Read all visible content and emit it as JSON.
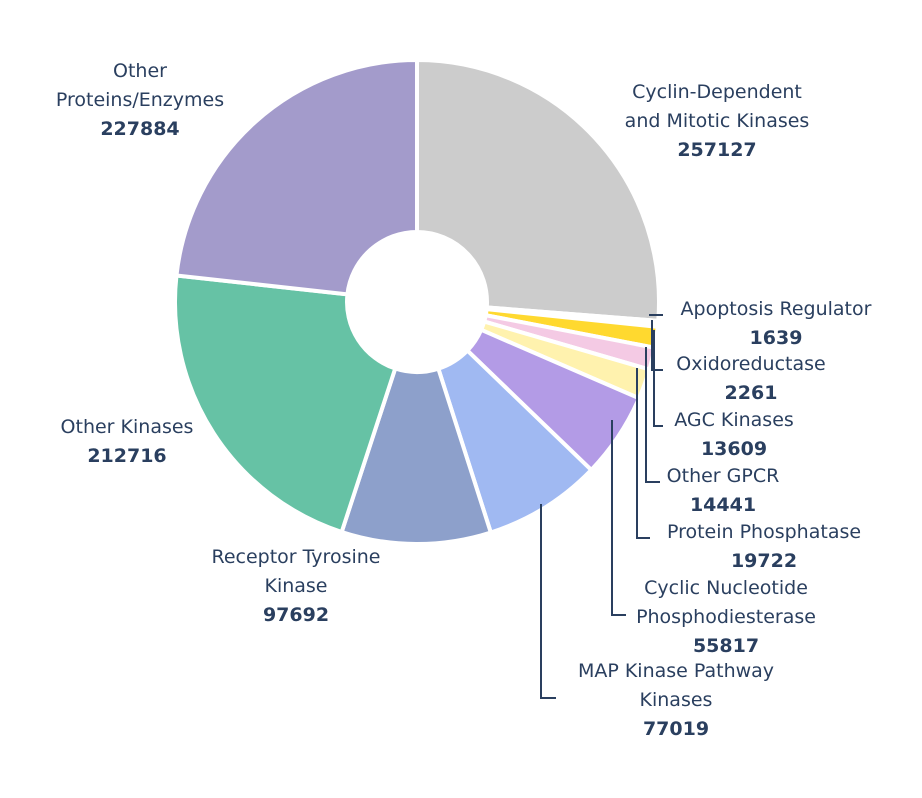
{
  "chart_data": {
    "type": "pie",
    "hole": true,
    "title": "",
    "legend": "none",
    "slices": [
      {
        "label": [
          "Cyclin-Dependent",
          "and Mitotic Kinases"
        ],
        "value": 257127,
        "color": "#cccccc"
      },
      {
        "label": [
          "Apoptosis Regulator"
        ],
        "value": 1639,
        "color": "#f28b82"
      },
      {
        "label": [
          "Oxidoreductase"
        ],
        "value": 2261,
        "color": "#f9a36f"
      },
      {
        "label": [
          "AGC Kinases"
        ],
        "value": 13609,
        "color": "#ffd92f"
      },
      {
        "label": [
          "Other GPCR"
        ],
        "value": 14441,
        "color": "#f4cae4"
      },
      {
        "label": [
          "Protein Phosphatase"
        ],
        "value": 19722,
        "color": "#fff2ae"
      },
      {
        "label": [
          "Cyclic Nucleotide",
          "Phosphodiesterase"
        ],
        "value": 55817,
        "color": "#b39be6"
      },
      {
        "label": [
          "MAP Kinase Pathway",
          "Kinases"
        ],
        "value": 77019,
        "color": "#a0b9f2"
      },
      {
        "label": [
          "Receptor Tyrosine",
          "Kinase"
        ],
        "value": 97692,
        "color": "#8da0cb"
      },
      {
        "label": [
          "Other Kinases"
        ],
        "value": 212716,
        "color": "#66c2a5"
      },
      {
        "label": [
          "Other",
          "Proteins/Enzymes"
        ],
        "value": 227884,
        "color": "#a39bcb"
      }
    ]
  }
}
